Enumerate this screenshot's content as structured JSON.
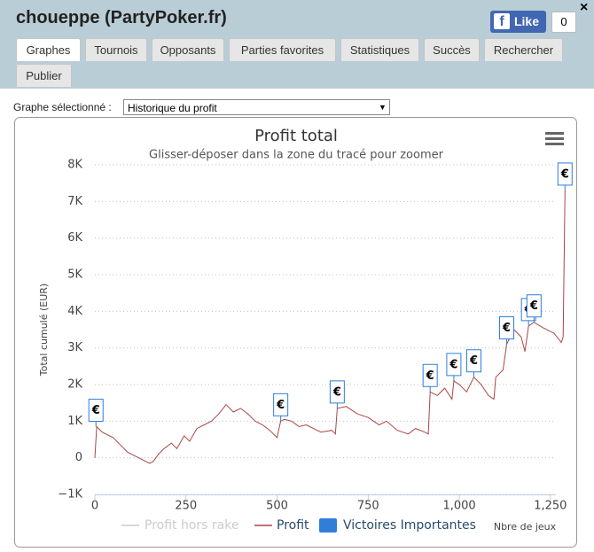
{
  "header": {
    "title": "choueppe (PartyPoker.fr)",
    "like": "Like",
    "like_count": "0",
    "close": "×"
  },
  "tabs": [
    "Graphes",
    "Tournois",
    "Opposants",
    "Parties favorites",
    "Statistiques",
    "Succès",
    "Rechercher",
    "Publier"
  ],
  "selector": {
    "label": "Graphe sélectionné :",
    "value": "Historique du profit"
  },
  "chart_data": {
    "type": "line",
    "title": "Profit total",
    "subtitle": "Glisser-déposer dans la zone du tracé pour zoomer",
    "y_label": "Total cumulé (EUR)",
    "x_label": "Nbre de jeux",
    "xlim": [
      0,
      1265
    ],
    "xticks": [
      0,
      250,
      500,
      750,
      {
        "value": 1000,
        "label": "1,000"
      },
      {
        "value": 1250,
        "label": "1,250"
      }
    ],
    "ylim": [
      -1000,
      8000
    ],
    "yticks": [
      {
        "value": -1000,
        "label": "−1K"
      },
      0,
      {
        "value": 1000,
        "label": "1K"
      },
      {
        "value": 2000,
        "label": "2K"
      },
      {
        "value": 3000,
        "label": "3K"
      },
      {
        "value": 4000,
        "label": "4K"
      },
      {
        "value": 5000,
        "label": "5K"
      },
      {
        "value": 6000,
        "label": "6K"
      },
      {
        "value": 7000,
        "label": "7K"
      },
      {
        "value": 8000,
        "label": "8K"
      }
    ],
    "grid": true,
    "series": [
      {
        "name": "Profit hors rake",
        "color": "#cccccc"
      },
      {
        "name": "Profit",
        "color": "#aa4643",
        "x": [
          0,
          5,
          20,
          50,
          70,
          90,
          110,
          130,
          150,
          160,
          175,
          190,
          210,
          225,
          245,
          260,
          280,
          300,
          320,
          340,
          360,
          380,
          400,
          420,
          440,
          460,
          480,
          500,
          510,
          520,
          540,
          560,
          580,
          600,
          620,
          650,
          660,
          665,
          690,
          720,
          750,
          780,
          800,
          830,
          860,
          880,
          905,
          915,
          920,
          940,
          960,
          980,
          985,
          1000,
          1020,
          1040,
          1060,
          1080,
          1095,
          1100,
          1120,
          1130,
          1150,
          1170,
          1180,
          1190,
          1205,
          1230,
          1260,
          1280,
          1285,
          1290
        ],
        "values": [
          0,
          850,
          700,
          550,
          350,
          150,
          50,
          -50,
          -150,
          -100,
          100,
          250,
          400,
          250,
          600,
          450,
          800,
          900,
          1000,
          1200,
          1450,
          1250,
          1350,
          1200,
          1000,
          900,
          750,
          550,
          1000,
          1050,
          1000,
          850,
          900,
          800,
          700,
          750,
          650,
          1350,
          1400,
          1200,
          1100,
          900,
          1000,
          750,
          650,
          800,
          700,
          650,
          1800,
          1700,
          1900,
          1600,
          2100,
          2000,
          1800,
          2200,
          2000,
          1700,
          1600,
          2200,
          2400,
          3100,
          3500,
          3300,
          2900,
          3600,
          3700,
          3550,
          3400,
          3150,
          3300,
          7300
        ]
      },
      {
        "name": "Victoires Importantes",
        "color": "#2f7ed8",
        "flag_label": "€",
        "x": [
          3,
          510,
          665,
          920,
          985,
          1040,
          1130,
          1190,
          1205,
          1290
        ],
        "values": [
          850,
          1000,
          1350,
          1800,
          2100,
          2200,
          3100,
          3600,
          3700,
          7300
        ]
      }
    ]
  }
}
